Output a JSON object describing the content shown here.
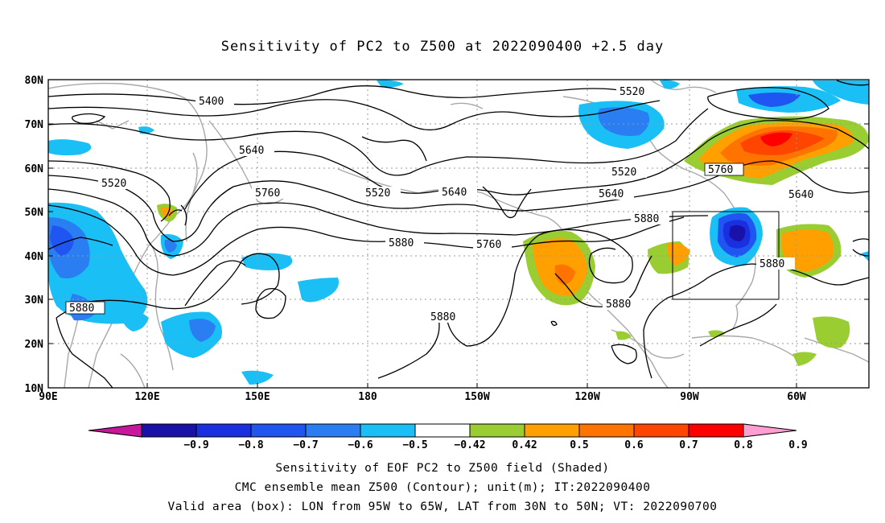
{
  "title": "Sensitivity of PC2 to Z500 at 2022090400 +2.5 day",
  "axes": {
    "lat_ticks": [
      "80N",
      "70N",
      "60N",
      "50N",
      "40N",
      "30N",
      "20N",
      "10N"
    ],
    "lon_ticks": [
      "90E",
      "120E",
      "150E",
      "180",
      "150W",
      "120W",
      "90W",
      "60W"
    ]
  },
  "contour_labels": [
    "5400",
    "5520",
    "5640",
    "5760",
    "5880",
    "5520",
    "5640",
    "5520",
    "5640",
    "5640",
    "5760",
    "5880",
    "5760",
    "5520",
    "5760",
    "5640",
    "5880",
    "5880",
    "5880",
    "5880"
  ],
  "colorbar": {
    "labels": [
      "-0.9",
      "-0.8",
      "-0.7",
      "-0.6",
      "-0.5",
      "-0.42",
      "0.42",
      "0.5",
      "0.6",
      "0.7",
      "0.8",
      "0.9"
    ],
    "colors": [
      "#c8179b",
      "#1a12a8",
      "#1a2fe0",
      "#1f55f0",
      "#2b7df2",
      "#19bff5",
      "#ffffff",
      "#9acd32",
      "#ffa000",
      "#ff7400",
      "#ff4500",
      "#ff0000",
      "#ff9ed0"
    ]
  },
  "valid_box": {
    "lon": [
      "95W",
      "65W"
    ],
    "lat": [
      "30N",
      "50N"
    ]
  },
  "captions": [
    "Sensitivity of EOF PC2 to Z500 field (Shaded)",
    "CMC ensemble mean Z500 (Contour); unit(m); IT:2022090400",
    "Valid area (box): LON from 95W to 65W, LAT from 30N to 50N; VT: 2022090700"
  ]
}
